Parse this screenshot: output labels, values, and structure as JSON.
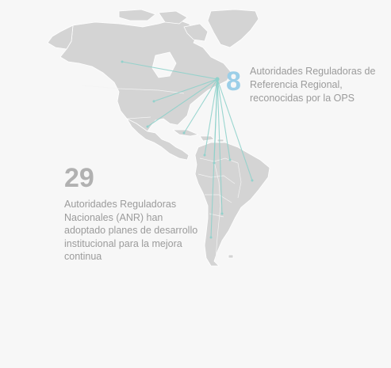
{
  "regional": {
    "number": "8",
    "description": "Autoridades Reguladoras de Referencia Regional, reconocidas por la OPS"
  },
  "national": {
    "number": "29",
    "description": "Autoridades Reguladoras Nacionales (ANR) han adoptado planes de desarrollo institucional para la mejora continua"
  },
  "colors": {
    "land": "#d4d4d4",
    "connection": "#8fd1cb",
    "regional_number": "#9ccfe8",
    "national_number": "#b1b1b1",
    "text": "#9b9b9b",
    "background": "#f7f7f7"
  }
}
